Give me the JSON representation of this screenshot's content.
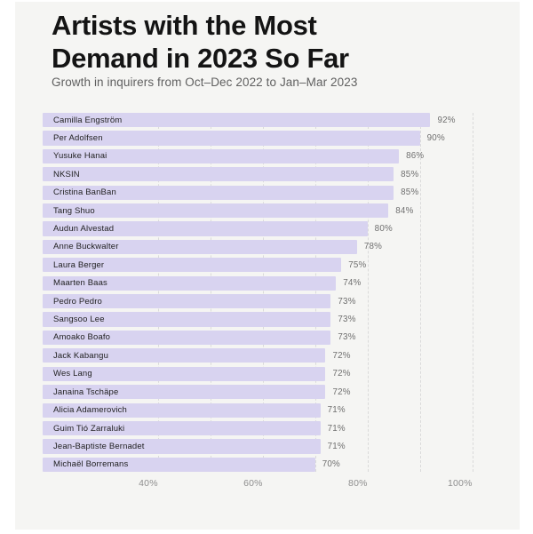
{
  "header": {
    "title_line1": "Artists with the Most",
    "title_line2": "Demand in 2023 So Far",
    "subtitle": "Growth in inquirers from Oct–Dec 2022 to Jan–Mar 2023"
  },
  "chart_data": {
    "type": "bar",
    "orientation": "horizontal",
    "title": "Artists with the Most Demand in 2023 So Far",
    "subtitle": "Growth in inquirers from Oct–Dec 2022 to Jan–Mar 2023",
    "categories": [
      "Camilla Engström",
      "Per Adolfsen",
      "Yusuke Hanai",
      "NKSIN",
      "Cristina BanBan",
      "Tang Shuo",
      "Audun Alvestad",
      "Anne Buckwalter",
      "Laura Berger",
      "Maarten Baas",
      "Pedro Pedro",
      "Sangsoo Lee",
      "Amoako Boafo",
      "Jack Kabangu",
      "Wes Lang",
      "Janaina Tschäpe",
      "Alicia Adamerovich",
      "Guim Tió Zarraluki",
      "Jean-Baptiste Bernadet",
      "Michaël Borremans"
    ],
    "values": [
      92,
      90,
      86,
      85,
      85,
      84,
      80,
      78,
      75,
      74,
      73,
      73,
      73,
      72,
      72,
      72,
      71,
      71,
      71,
      70
    ],
    "value_suffix": "%",
    "value_labels": [
      "92%",
      "90%",
      "86%",
      "85%",
      "85%",
      "84%",
      "80%",
      "78%",
      "75%",
      "74%",
      "73%",
      "73%",
      "73%",
      "72%",
      "72%",
      "72%",
      "71%",
      "71%",
      "71%",
      "70%"
    ],
    "axis": {
      "xlim": [
        18,
        104.3
      ],
      "ticks": [
        40,
        60,
        80,
        100
      ],
      "tick_labels": [
        "40%",
        "60%",
        "80%",
        "100%"
      ],
      "gridlines": [
        40,
        50,
        60,
        70,
        80,
        90,
        100
      ],
      "grid_style": "dashed",
      "legend": "none"
    },
    "colors": {
      "background": "#f5f5f3",
      "bar": "#d8d3f0",
      "grid": "#dadada",
      "title": "#141414",
      "subtitle": "#5f5f5f",
      "name_label": "#1f1f1f",
      "value_label": "#6f6f6f",
      "tick_label": "#8e8e8e"
    }
  }
}
